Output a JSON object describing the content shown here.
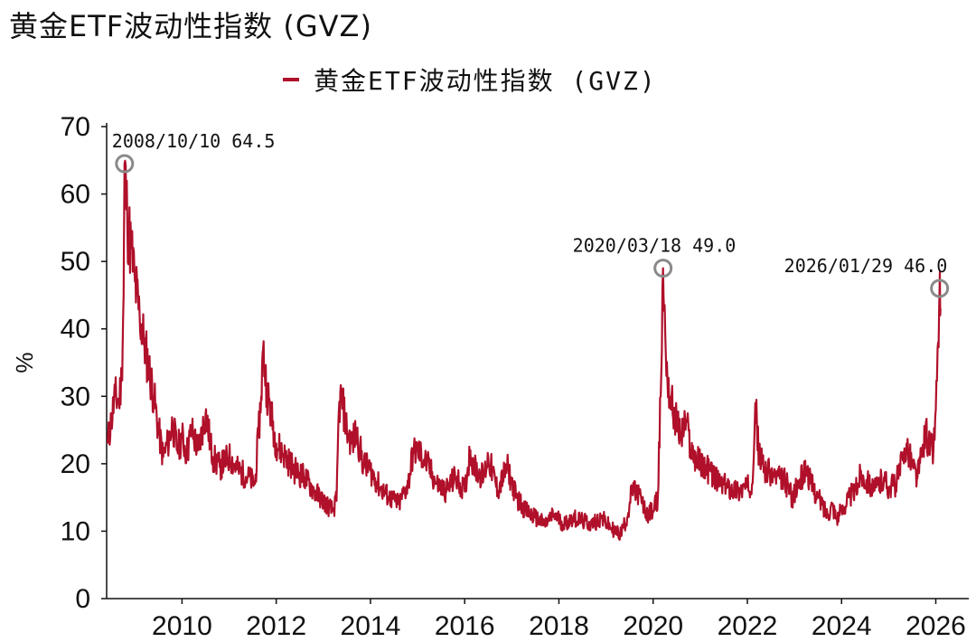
{
  "title": "黄金ETF波动性指数 (GVZ)",
  "colors": {
    "series": "#b0102a",
    "marker": "#8a8a8a",
    "axis": "#111111"
  },
  "chart_data": {
    "type": "line",
    "title": "黄金ETF波动性指数 (GVZ)",
    "xlabel": "",
    "ylabel": "%",
    "xlim": [
      2008.4,
      2026.7
    ],
    "ylim": [
      0,
      70
    ],
    "x_ticks": [
      "2010",
      "2012",
      "2014",
      "2016",
      "2018",
      "2020",
      "2022",
      "2024",
      "2026"
    ],
    "y_ticks": [
      "0",
      "10",
      "20",
      "30",
      "40",
      "50",
      "60",
      "70"
    ],
    "grid": false,
    "legend": "top-center",
    "series": [
      {
        "name": "黄金ETF波动性指数 (GVZ)",
        "points": [
          [
            2008.42,
            23
          ],
          [
            2008.5,
            26.5
          ],
          [
            2008.58,
            30
          ],
          [
            2008.66,
            29
          ],
          [
            2008.72,
            33
          ],
          [
            2008.76,
            45
          ],
          [
            2008.78,
            64.5
          ],
          [
            2008.84,
            56
          ],
          [
            2008.92,
            52
          ],
          [
            2009.0,
            47
          ],
          [
            2009.1,
            42
          ],
          [
            2009.2,
            38
          ],
          [
            2009.3,
            34
          ],
          [
            2009.4,
            30
          ],
          [
            2009.5,
            25
          ],
          [
            2009.6,
            21
          ],
          [
            2009.7,
            23
          ],
          [
            2009.8,
            26
          ],
          [
            2009.9,
            22
          ],
          [
            2010.0,
            24
          ],
          [
            2010.1,
            21.5
          ],
          [
            2010.2,
            25
          ],
          [
            2010.35,
            22
          ],
          [
            2010.5,
            27.5
          ],
          [
            2010.65,
            21
          ],
          [
            2010.8,
            19.5
          ],
          [
            2011.0,
            21
          ],
          [
            2011.2,
            19
          ],
          [
            2011.4,
            18
          ],
          [
            2011.55,
            17
          ],
          [
            2011.62,
            24
          ],
          [
            2011.68,
            30
          ],
          [
            2011.72,
            37
          ],
          [
            2011.8,
            31
          ],
          [
            2011.9,
            27
          ],
          [
            2012.0,
            23
          ],
          [
            2012.2,
            21
          ],
          [
            2012.4,
            19
          ],
          [
            2012.6,
            18
          ],
          [
            2012.8,
            16
          ],
          [
            2013.0,
            14.5
          ],
          [
            2013.2,
            13
          ],
          [
            2013.28,
            14.5
          ],
          [
            2013.33,
            28
          ],
          [
            2013.38,
            30
          ],
          [
            2013.5,
            25
          ],
          [
            2013.6,
            23
          ],
          [
            2013.7,
            24.5
          ],
          [
            2013.85,
            20
          ],
          [
            2014.0,
            19
          ],
          [
            2014.2,
            16.5
          ],
          [
            2014.4,
            15
          ],
          [
            2014.6,
            14
          ],
          [
            2014.8,
            17
          ],
          [
            2014.9,
            21.5
          ],
          [
            2015.0,
            22
          ],
          [
            2015.2,
            20
          ],
          [
            2015.4,
            17
          ],
          [
            2015.6,
            16
          ],
          [
            2015.8,
            18
          ],
          [
            2016.0,
            16
          ],
          [
            2016.12,
            22
          ],
          [
            2016.2,
            19.5
          ],
          [
            2016.4,
            18
          ],
          [
            2016.5,
            21
          ],
          [
            2016.7,
            16
          ],
          [
            2016.9,
            19.5
          ],
          [
            2017.1,
            15
          ],
          [
            2017.3,
            13
          ],
          [
            2017.5,
            12
          ],
          [
            2017.7,
            11
          ],
          [
            2017.9,
            12.5
          ],
          [
            2018.1,
            11
          ],
          [
            2018.3,
            12
          ],
          [
            2018.5,
            11.5
          ],
          [
            2018.7,
            11
          ],
          [
            2018.9,
            12
          ],
          [
            2019.1,
            10.5
          ],
          [
            2019.3,
            9.5
          ],
          [
            2019.45,
            12
          ],
          [
            2019.55,
            16
          ],
          [
            2019.7,
            15.5
          ],
          [
            2019.85,
            12.5
          ],
          [
            2020.0,
            13
          ],
          [
            2020.1,
            15
          ],
          [
            2020.16,
            30
          ],
          [
            2020.21,
            49.0
          ],
          [
            2020.27,
            36
          ],
          [
            2020.35,
            30
          ],
          [
            2020.5,
            26
          ],
          [
            2020.6,
            24
          ],
          [
            2020.7,
            26.5
          ],
          [
            2020.8,
            22
          ],
          [
            2021.0,
            20
          ],
          [
            2021.2,
            19
          ],
          [
            2021.4,
            17
          ],
          [
            2021.6,
            16.5
          ],
          [
            2021.8,
            16
          ],
          [
            2022.0,
            16.5
          ],
          [
            2022.1,
            17
          ],
          [
            2022.17,
            29
          ],
          [
            2022.25,
            21
          ],
          [
            2022.4,
            19
          ],
          [
            2022.6,
            18
          ],
          [
            2022.8,
            17.5
          ],
          [
            2022.95,
            15
          ],
          [
            2023.1,
            17
          ],
          [
            2023.25,
            19.5
          ],
          [
            2023.35,
            17
          ],
          [
            2023.5,
            15
          ],
          [
            2023.7,
            12.5
          ],
          [
            2023.8,
            14
          ],
          [
            2023.9,
            12
          ],
          [
            2024.0,
            13
          ],
          [
            2024.15,
            15
          ],
          [
            2024.3,
            16
          ],
          [
            2024.4,
            18.5
          ],
          [
            2024.55,
            17.5
          ],
          [
            2024.7,
            16
          ],
          [
            2024.9,
            18
          ],
          [
            2025.0,
            16.5
          ],
          [
            2025.15,
            17
          ],
          [
            2025.3,
            20.5
          ],
          [
            2025.38,
            23
          ],
          [
            2025.5,
            20
          ],
          [
            2025.6,
            18
          ],
          [
            2025.7,
            21
          ],
          [
            2025.78,
            25
          ],
          [
            2025.85,
            23
          ],
          [
            2025.95,
            22
          ],
          [
            2026.0,
            28
          ],
          [
            2026.05,
            38
          ],
          [
            2026.08,
            46.0
          ],
          [
            2026.1,
            43
          ]
        ]
      }
    ],
    "annotations": [
      {
        "date": "2008/10/10",
        "value": "64.5",
        "x": 2008.78,
        "y": 64.5,
        "text": "2008/10/10  64.5"
      },
      {
        "date": "2020/03/18",
        "value": "49.0",
        "x": 2020.21,
        "y": 49.0,
        "text": "2020/03/18  49.0"
      },
      {
        "date": "2026/01/29",
        "value": "46.0",
        "x": 2026.08,
        "y": 46.0,
        "text": "2026/01/29  46.0"
      }
    ]
  }
}
